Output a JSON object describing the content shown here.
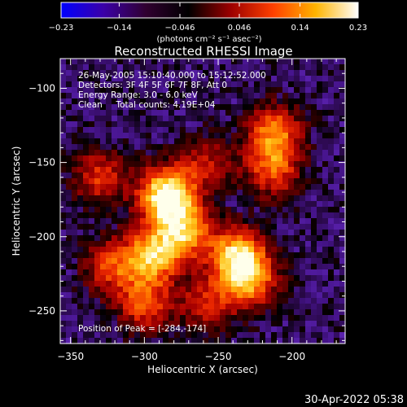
{
  "chart_data": {
    "type": "heatmap",
    "title": "Reconstructed RHESSI Image",
    "xlabel": "Heliocentric X (arcsec)",
    "ylabel": "Heliocentric Y (arcsec)",
    "xlim": [
      -357,
      -164
    ],
    "ylim": [
      -272,
      -80
    ],
    "x_ticks": [
      -350,
      -300,
      -250,
      -200
    ],
    "x_tick_labels": [
      "−350",
      "−300",
      "−250",
      "−200"
    ],
    "y_ticks": [
      -100,
      -150,
      -200,
      -250
    ],
    "y_tick_labels": [
      "−100",
      "−150",
      "−200",
      "−250"
    ],
    "colorbar": {
      "range": [
        -0.23,
        0.23
      ],
      "ticks": [
        -0.23,
        -0.14,
        -0.046,
        0.046,
        0.14,
        0.23
      ],
      "tick_labels": [
        "−0.23",
        "−0.14",
        "−0.046",
        "0.046",
        "0.14",
        "0.23"
      ],
      "unit_label": "(photons cm⁻² s⁻¹ asec⁻²)",
      "colors": [
        "#0000ff",
        "#3b00a8",
        "#300030",
        "#000000",
        "#9c0000",
        "#ff4000",
        "#ffb400",
        "#ffffff"
      ]
    },
    "annotations": [
      "26-May-2005 15:10:40.000 to 15:12:52.000",
      "Detectors: 3F 4F 5F 6F 7F 8F, Att 0",
      "Energy Range: 3.0 - 6.0 keV",
      "Clean     Total counts: 4.19E+04"
    ],
    "peak_label": "Position of Peak = [-284,-174]",
    "peak": [
      -284,
      -174
    ],
    "sources": [
      {
        "x": -285,
        "y": -172,
        "intensity": 1.0
      },
      {
        "x": -273,
        "y": -196,
        "intensity": 0.7
      },
      {
        "x": -295,
        "y": -213,
        "intensity": 0.75
      },
      {
        "x": -237,
        "y": -213,
        "intensity": 0.8
      },
      {
        "x": -228,
        "y": -230,
        "intensity": 0.6
      },
      {
        "x": -323,
        "y": -220,
        "intensity": 0.45
      },
      {
        "x": -330,
        "y": -160,
        "intensity": 0.45
      },
      {
        "x": -212,
        "y": -130,
        "intensity": 0.6
      },
      {
        "x": -213,
        "y": -155,
        "intensity": 0.5
      },
      {
        "x": -258,
        "y": -150,
        "intensity": 0.35
      },
      {
        "x": -300,
        "y": -245,
        "intensity": 0.5
      },
      {
        "x": -258,
        "y": -245,
        "intensity": 0.4
      }
    ]
  },
  "timestamp": "30-Apr-2022 05:38"
}
